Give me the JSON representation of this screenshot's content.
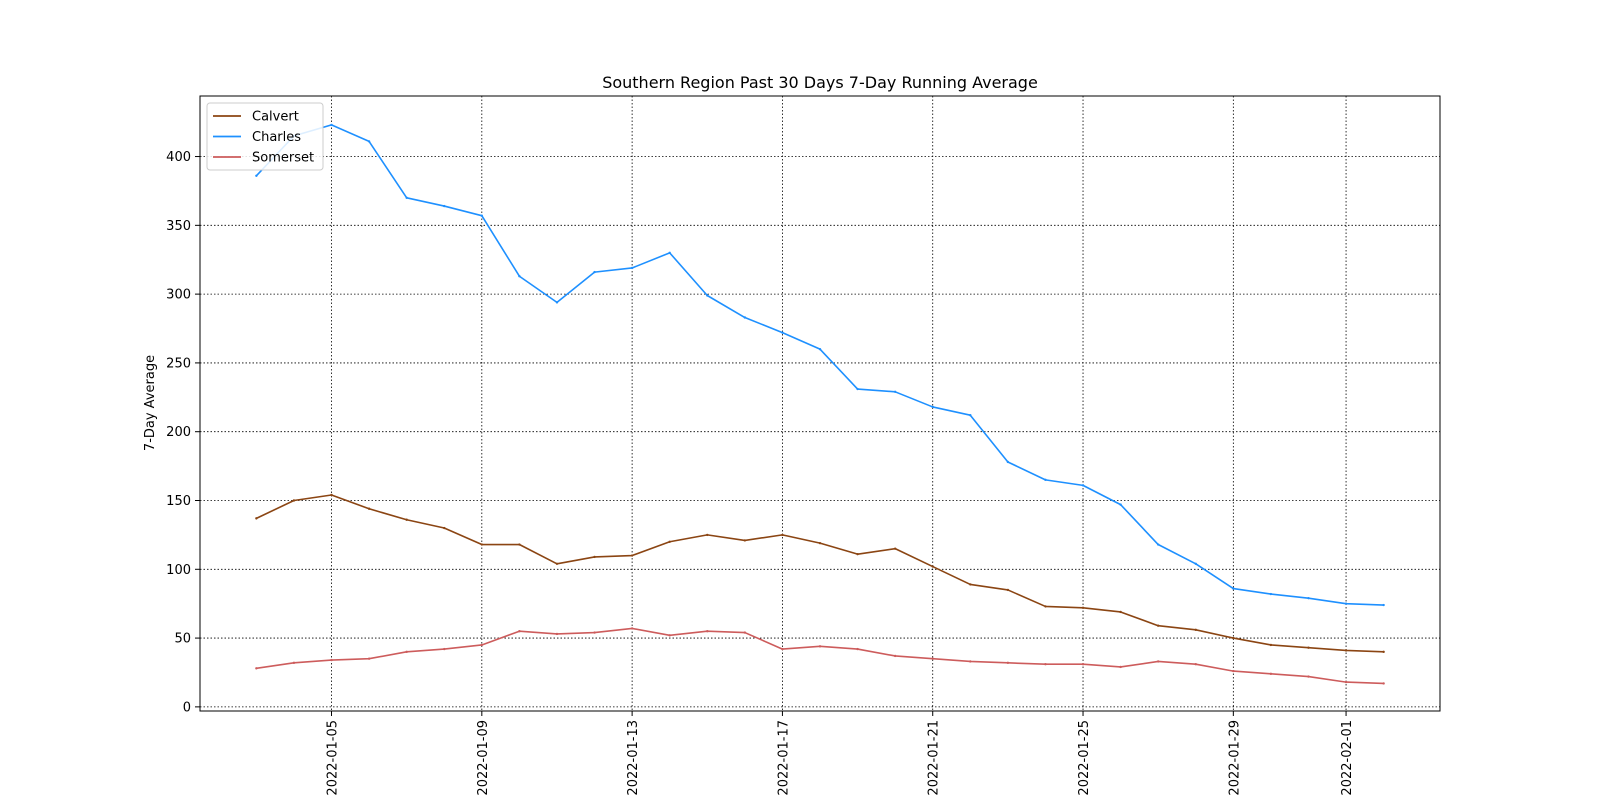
{
  "chart_data": {
    "type": "line",
    "title": "Southern Region Past 30 Days 7-Day Running Average",
    "xlabel": "",
    "ylabel": "7-Day Average",
    "ylim": [
      -3,
      444
    ],
    "xlim": [
      "2022-01-01 12:00",
      "2022-02-03 12:00"
    ],
    "x_ticks": [
      "2022-01-05",
      "2022-01-09",
      "2022-01-13",
      "2022-01-17",
      "2022-01-21",
      "2022-01-25",
      "2022-01-29",
      "2022-02-01"
    ],
    "y_ticks": [
      0,
      50,
      100,
      150,
      200,
      250,
      300,
      350,
      400
    ],
    "grid": true,
    "legend_position": "top-left",
    "x": [
      "2022-01-03",
      "2022-01-04",
      "2022-01-05",
      "2022-01-06",
      "2022-01-07",
      "2022-01-08",
      "2022-01-09",
      "2022-01-10",
      "2022-01-11",
      "2022-01-12",
      "2022-01-13",
      "2022-01-14",
      "2022-01-15",
      "2022-01-16",
      "2022-01-17",
      "2022-01-18",
      "2022-01-19",
      "2022-01-20",
      "2022-01-21",
      "2022-01-22",
      "2022-01-23",
      "2022-01-24",
      "2022-01-25",
      "2022-01-26",
      "2022-01-27",
      "2022-01-28",
      "2022-01-29",
      "2022-01-30",
      "2022-01-31",
      "2022-02-01",
      "2022-02-02"
    ],
    "series": [
      {
        "name": "Calvert",
        "color": "#8b4513",
        "values": [
          137,
          150,
          154,
          144,
          136,
          130,
          118,
          118,
          104,
          109,
          110,
          120,
          125,
          121,
          125,
          119,
          111,
          115,
          102,
          89,
          85,
          73,
          72,
          69,
          59,
          56,
          50,
          45,
          43,
          41,
          40
        ]
      },
      {
        "name": "Charles",
        "color": "#1e90ff",
        "values": [
          386,
          415,
          423,
          411,
          370,
          364,
          357,
          313,
          294,
          316,
          319,
          330,
          299,
          283,
          272,
          260,
          231,
          229,
          218,
          212,
          178,
          165,
          161,
          147,
          118,
          104,
          86,
          82,
          79,
          75,
          74
        ]
      },
      {
        "name": "Somerset",
        "color": "#cd5c5c",
        "values": [
          28,
          32,
          34,
          35,
          40,
          42,
          45,
          55,
          53,
          54,
          57,
          52,
          55,
          54,
          42,
          44,
          42,
          37,
          35,
          33,
          32,
          31,
          31,
          29,
          33,
          31,
          26,
          24,
          22,
          18,
          17
        ]
      }
    ]
  }
}
